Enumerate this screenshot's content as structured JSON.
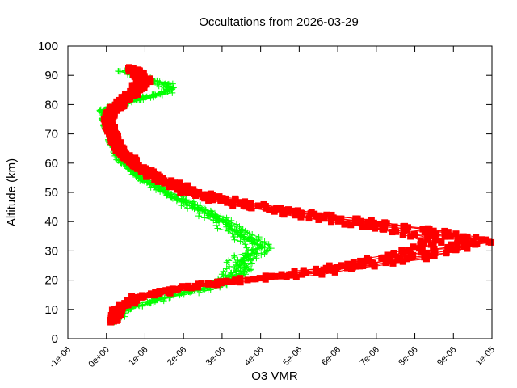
{
  "chart_data": {
    "type": "scatter",
    "title": "Occultations from 2026-03-29",
    "xlabel": "O3 VMR",
    "ylabel": "Altitude (km)",
    "xlim": [
      -1e-06,
      1e-05
    ],
    "ylim": [
      0,
      100
    ],
    "x_ticks": [
      "-1e-06",
      "0e+00",
      "1e-06",
      "2e-06",
      "3e-06",
      "4e-06",
      "5e-06",
      "6e-06",
      "7e-06",
      "8e-06",
      "9e-06",
      "1e-05"
    ],
    "x_tick_values": [
      -1e-06,
      0,
      1e-06,
      2e-06,
      3e-06,
      4e-06,
      5e-06,
      6e-06,
      7e-06,
      8e-06,
      9e-06,
      1e-05
    ],
    "y_ticks": [
      "0",
      "10",
      "20",
      "30",
      "40",
      "50",
      "60",
      "70",
      "80",
      "90",
      "100"
    ],
    "y_tick_values": [
      0,
      10,
      20,
      30,
      40,
      50,
      60,
      70,
      80,
      90,
      100
    ],
    "grid": false,
    "legend": null,
    "series": [
      {
        "name": "green-plus-series",
        "marker": "plus",
        "color": "#00ff00",
        "x_unit": "1e-06",
        "points": [
          [
            0.2,
            6
          ],
          [
            0.5,
            10
          ],
          [
            1.5,
            14
          ],
          [
            2.5,
            17
          ],
          [
            3.1,
            20
          ],
          [
            3.4,
            23
          ],
          [
            3.5,
            27
          ],
          [
            4.0,
            31
          ],
          [
            3.7,
            34
          ],
          [
            3.3,
            37
          ],
          [
            3.0,
            40
          ],
          [
            2.6,
            43
          ],
          [
            2.0,
            47
          ],
          [
            1.5,
            50
          ],
          [
            0.9,
            55
          ],
          [
            0.45,
            60
          ],
          [
            0.25,
            65
          ],
          [
            0.1,
            70
          ],
          [
            0.0,
            75
          ],
          [
            -0.05,
            78
          ],
          [
            0.3,
            80
          ],
          [
            1.2,
            83
          ],
          [
            1.7,
            85
          ],
          [
            1.5,
            87
          ],
          [
            1.0,
            89
          ],
          [
            0.3,
            92
          ]
        ]
      },
      {
        "name": "red-square-series",
        "marker": "square",
        "color": "#ff0000",
        "x_unit": "1e-06",
        "points": [
          [
            0.2,
            6
          ],
          [
            0.3,
            10
          ],
          [
            0.8,
            14
          ],
          [
            1.8,
            17
          ],
          [
            3.5,
            20
          ],
          [
            5.0,
            22
          ],
          [
            6.5,
            25
          ],
          [
            7.8,
            28
          ],
          [
            8.7,
            31
          ],
          [
            9.2,
            33
          ],
          [
            8.8,
            35
          ],
          [
            8.0,
            37
          ],
          [
            6.5,
            40
          ],
          [
            5.5,
            42
          ],
          [
            4.0,
            45
          ],
          [
            2.8,
            48
          ],
          [
            2.2,
            50
          ],
          [
            1.3,
            55
          ],
          [
            0.7,
            60
          ],
          [
            0.35,
            65
          ],
          [
            0.15,
            70
          ],
          [
            0.05,
            75
          ],
          [
            0.15,
            78
          ],
          [
            0.5,
            82
          ],
          [
            0.8,
            85
          ],
          [
            1.0,
            88
          ],
          [
            0.9,
            90
          ],
          [
            0.6,
            93
          ]
        ]
      }
    ]
  }
}
